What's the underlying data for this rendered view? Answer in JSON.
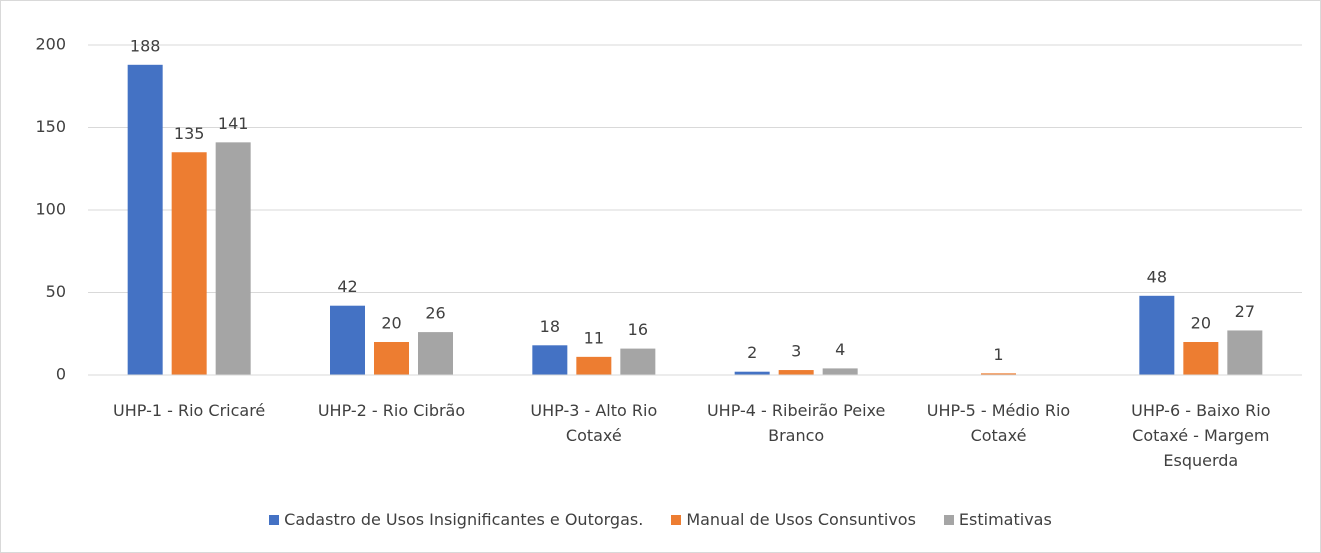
{
  "chart_data": {
    "type": "bar",
    "categories": [
      "UHP-1 - Rio Cricaré",
      "UHP-2 - Rio Cibrão",
      "UHP-3 - Alto Rio Cotaxé",
      "UHP-4 - Ribeirão Peixe Branco",
      "UHP-5 - Médio Rio Cotaxé",
      "UHP-6 - Baixo Rio Cotaxé - Margem Esquerda"
    ],
    "series": [
      {
        "name": "Cadastro de Usos Insignificantes e Outorgas.",
        "color": "#4472c4",
        "values": [
          188,
          42,
          18,
          2,
          null,
          48
        ]
      },
      {
        "name": "Manual de Usos Consuntivos",
        "color": "#ed7d31",
        "values": [
          135,
          20,
          11,
          3,
          1,
          20
        ]
      },
      {
        "name": "Estimativas",
        "color": "#a5a5a5",
        "values": [
          141,
          26,
          16,
          4,
          null,
          27
        ]
      }
    ],
    "ylim": [
      0,
      200
    ],
    "yticks": [
      0,
      50,
      100,
      150,
      200
    ],
    "grid": true,
    "legend": "bottom"
  }
}
